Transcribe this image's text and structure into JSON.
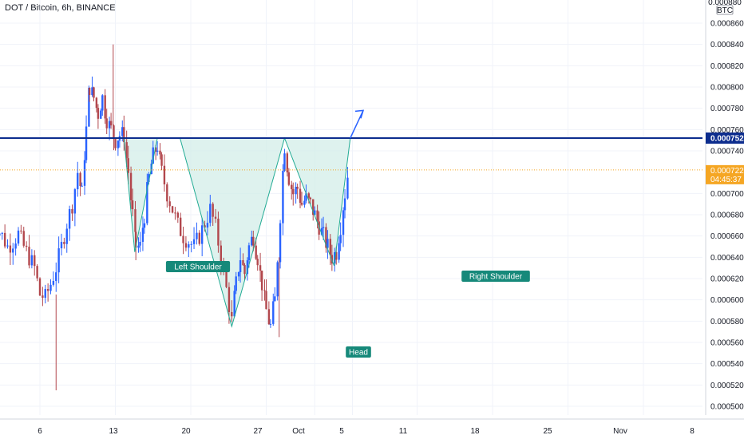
{
  "header": {
    "title": "DOT / Bitcoin, 6h, BINANCE"
  },
  "price_axis": {
    "unit_top": "0.000880",
    "unit": "BTC",
    "ticks": [
      "0.0008600",
      "0.0008400",
      "0.0008200",
      "0.0008000",
      "0.0007800",
      "0.0007600",
      "0.0007400",
      "0.0007000",
      "0.0006800",
      "0.0006600",
      "0.0006400",
      "0.0006200",
      "0.0006000",
      "0.0005800",
      "0.0005600",
      "0.0005400",
      "0.0005200",
      "0.0005000"
    ],
    "neckline_tag": "0.0007520",
    "last_price_tag": "0.0007221",
    "countdown_tag": "04:45:37"
  },
  "time_axis": {
    "ticks": [
      "6",
      "13",
      "20",
      "27",
      "Oct",
      "5",
      "11",
      "18",
      "25",
      "Nov",
      "8"
    ]
  },
  "annotations": {
    "left_shoulder": "Left Shoulder",
    "head": "Head",
    "right_shoulder": "Right Shoulder"
  },
  "colors": {
    "up": "#2962ff",
    "down": "#b2474d",
    "neckline": "#0d2d8e",
    "pattern_fill": "#d3ede8",
    "pattern_line": "#22ab94",
    "label_bg": "#16897a",
    "price_tag": "#f5a623",
    "grid": "#f0f3fa"
  },
  "chart_data": {
    "type": "candlestick",
    "y_range": [
      0.00049,
      0.00088
    ],
    "neckline": 0.000752,
    "last_price": 0.0007221,
    "pattern_points": [
      {
        "x": 7.8,
        "y": 0.000752
      },
      {
        "x": 8.8,
        "y": 0.000645
      },
      {
        "x": 10.9,
        "y": 0.000752
      },
      {
        "x": 13.0,
        "y": 0.000752
      },
      {
        "x": 17.8,
        "y": 0.000575
      },
      {
        "x": 22.7,
        "y": 0.000752
      },
      {
        "x": 27.3,
        "y": 0.000632
      },
      {
        "x": 28.8,
        "y": 0.000752
      }
    ],
    "projection": {
      "from": [
        28.8,
        0.000752
      ],
      "to": [
        30.0,
        0.000778
      ]
    },
    "close_path": [
      [
        -4.5,
        0.000655
      ],
      [
        -4.0,
        0.000668
      ],
      [
        -3.5,
        0.00066
      ],
      [
        -3.0,
        0.00065
      ],
      [
        -2.5,
        0.000655
      ],
      [
        -2.0,
        0.000662
      ],
      [
        -1.5,
        0.00065
      ],
      [
        -1.0,
        0.00064
      ],
      [
        -0.5,
        0.00063
      ],
      [
        0.0,
        0.000605
      ],
      [
        0.5,
        0.000602
      ],
      [
        1.0,
        0.000615
      ],
      [
        1.5,
        0.00063
      ],
      [
        2.0,
        0.00065
      ],
      [
        2.5,
        0.000672
      ],
      [
        3.0,
        0.00069
      ],
      [
        3.5,
        0.00072
      ],
      [
        3.9,
        0.0007
      ],
      [
        4.3,
        0.00076
      ],
      [
        4.6,
        0.0008
      ],
      [
        5.0,
        0.00079
      ],
      [
        5.4,
        0.000775
      ],
      [
        5.8,
        0.00079
      ],
      [
        6.2,
        0.00077
      ],
      [
        6.6,
        0.00076
      ],
      [
        7.0,
        0.00075
      ],
      [
        7.4,
        0.000755
      ],
      [
        7.8,
        0.000755
      ],
      [
        8.2,
        0.00072
      ],
      [
        8.6,
        0.00068
      ],
      [
        8.9,
        0.00065
      ],
      [
        9.3,
        0.00065
      ],
      [
        9.7,
        0.00068
      ],
      [
        10.1,
        0.000715
      ],
      [
        10.5,
        0.000735
      ],
      [
        10.9,
        0.000745
      ],
      [
        11.3,
        0.00072
      ],
      [
        11.8,
        0.0007
      ],
      [
        12.3,
        0.000685
      ],
      [
        12.8,
        0.00067
      ],
      [
        13.3,
        0.00066
      ],
      [
        13.8,
        0.000655
      ],
      [
        14.3,
        0.00065
      ],
      [
        14.8,
        0.00066
      ],
      [
        15.3,
        0.000672
      ],
      [
        15.8,
        0.000685
      ],
      [
        16.3,
        0.000668
      ],
      [
        16.8,
        0.00064
      ],
      [
        17.3,
        0.00061
      ],
      [
        17.8,
        0.00058
      ],
      [
        18.2,
        0.000615
      ],
      [
        18.6,
        0.00064
      ],
      [
        19.0,
        0.000625
      ],
      [
        19.4,
        0.00065
      ],
      [
        19.8,
        0.00066
      ],
      [
        20.2,
        0.00064
      ],
      [
        20.6,
        0.000615
      ],
      [
        21.0,
        0.00059
      ],
      [
        21.4,
        0.000575
      ],
      [
        21.8,
        0.0006
      ],
      [
        22.3,
        0.00068
      ],
      [
        22.7,
        0.000745
      ],
      [
        23.1,
        0.000715
      ],
      [
        23.5,
        0.0007
      ],
      [
        23.9,
        0.000705
      ],
      [
        24.3,
        0.00069
      ],
      [
        24.7,
        0.000695
      ],
      [
        25.1,
        0.00069
      ],
      [
        25.5,
        0.00068
      ],
      [
        25.9,
        0.00067
      ],
      [
        26.3,
        0.00066
      ],
      [
        26.7,
        0.00065
      ],
      [
        27.1,
        0.00064
      ],
      [
        27.5,
        0.000645
      ],
      [
        27.9,
        0.00067
      ],
      [
        28.3,
        0.0007
      ],
      [
        28.6,
        0.00072
      ]
    ]
  }
}
